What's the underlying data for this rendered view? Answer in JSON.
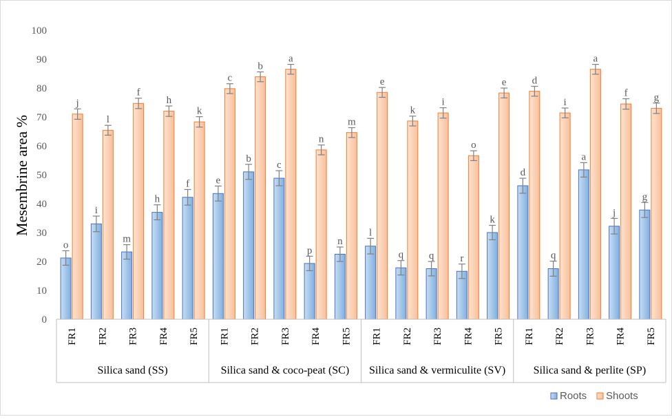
{
  "chart_data": {
    "type": "bar",
    "title": "",
    "xlabel": "",
    "ylabel": "Mesembrine area %",
    "ylim": [
      0,
      100
    ],
    "yticks": [
      0,
      10,
      20,
      30,
      40,
      50,
      60,
      70,
      80,
      90,
      100
    ],
    "grid": false,
    "legend_position": "bottom-right",
    "groups": [
      {
        "label": "Silica sand (SS)",
        "categories": [
          "FR1",
          "FR2",
          "FR3",
          "FR4",
          "FR5"
        ]
      },
      {
        "label": "Silica sand & coco-peat (SC)",
        "categories": [
          "FR1",
          "FR2",
          "FR3",
          "FR4",
          "FR5"
        ]
      },
      {
        "label": "Silica sand & vermiculite (SV)",
        "categories": [
          "FR1",
          "FR2",
          "FR3",
          "FR4",
          "FR5"
        ]
      },
      {
        "label": "Silica sand & perlite (SP)",
        "categories": [
          "FR1",
          "FR2",
          "FR3",
          "FR4",
          "FR5"
        ]
      }
    ],
    "series": [
      {
        "name": "Roots",
        "color": "#5b9bd5",
        "values": [
          21.2,
          33.0,
          23.3,
          37.0,
          42.2,
          43.5,
          51.0,
          48.8,
          19.3,
          22.5,
          25.3,
          17.8,
          17.5,
          16.6,
          30.0,
          46.2,
          17.5,
          51.7,
          32.2,
          37.8
        ],
        "errors": [
          2.5,
          2.7,
          2.5,
          2.6,
          2.7,
          2.6,
          2.6,
          2.6,
          2.5,
          2.5,
          2.7,
          2.5,
          2.5,
          2.5,
          2.5,
          2.6,
          2.6,
          2.5,
          2.7,
          2.6
        ],
        "labels": [
          "o",
          "i",
          "m",
          "h",
          "f",
          "e",
          "b",
          "c",
          "p",
          "n",
          "l",
          "q",
          "q",
          "r",
          "k",
          "d",
          "q",
          "a",
          "j",
          "g"
        ]
      },
      {
        "name": "Shoots",
        "color": "#f4b183",
        "values": [
          71.0,
          65.4,
          74.7,
          72.0,
          68.3,
          79.8,
          83.9,
          86.5,
          58.6,
          64.6,
          78.5,
          68.6,
          71.4,
          56.6,
          78.3,
          78.9,
          71.4,
          86.5,
          74.5,
          73.0
        ],
        "errors": [
          1.8,
          1.7,
          1.8,
          1.8,
          1.8,
          1.7,
          1.7,
          1.7,
          1.7,
          1.7,
          1.7,
          1.7,
          1.8,
          1.7,
          1.7,
          1.7,
          1.7,
          1.7,
          1.8,
          1.8
        ],
        "labels": [
          "j",
          "l",
          "f",
          "h",
          "k",
          "c",
          "b",
          "a",
          "n",
          "m",
          "e",
          "k",
          "i",
          "o",
          "e",
          "d",
          "i",
          "a",
          "f",
          "g"
        ]
      }
    ]
  }
}
